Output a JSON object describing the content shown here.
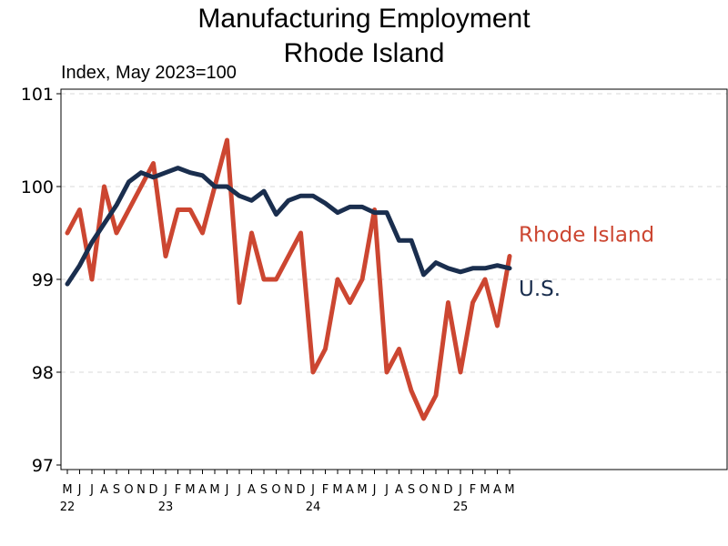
{
  "chart_data": {
    "type": "line",
    "title": "Manufacturing Employment",
    "subtitle": "Rhode Island",
    "ylabel": "Index, May 2023=100",
    "ylim": [
      97,
      101
    ],
    "yticks": [
      97,
      98,
      99,
      100,
      101
    ],
    "x": [
      "2022-05",
      "2022-06",
      "2022-07",
      "2022-08",
      "2022-09",
      "2022-10",
      "2022-11",
      "2022-12",
      "2023-01",
      "2023-02",
      "2023-03",
      "2023-04",
      "2023-05",
      "2023-06",
      "2023-07",
      "2023-08",
      "2023-09",
      "2023-10",
      "2023-11",
      "2023-12",
      "2024-01",
      "2024-02",
      "2024-03",
      "2024-04",
      "2024-05",
      "2024-06",
      "2024-07",
      "2024-08",
      "2024-09",
      "2024-10",
      "2024-11",
      "2024-12",
      "2025-01",
      "2025-02",
      "2025-03",
      "2025-04",
      "2025-05"
    ],
    "month_labels": [
      "M",
      "J",
      "J",
      "A",
      "S",
      "O",
      "N",
      "D",
      "J",
      "F",
      "M",
      "A",
      "M",
      "J",
      "J",
      "A",
      "S",
      "O",
      "N",
      "D",
      "J",
      "F",
      "M",
      "A",
      "M",
      "J",
      "J",
      "A",
      "S",
      "O",
      "N",
      "D",
      "J",
      "F",
      "M",
      "A",
      "M"
    ],
    "year_labels": [
      {
        "index": 0,
        "label": "22"
      },
      {
        "index": 8,
        "label": "23"
      },
      {
        "index": 20,
        "label": "24"
      },
      {
        "index": 32,
        "label": "25"
      }
    ],
    "series": [
      {
        "name": "Rhode Island",
        "color": "#cc4631",
        "values": [
          99.5,
          99.75,
          99.0,
          100.0,
          99.5,
          99.75,
          100.0,
          100.25,
          99.25,
          99.75,
          99.75,
          99.5,
          100.0,
          100.5,
          98.75,
          99.5,
          99.0,
          99.0,
          99.25,
          99.5,
          98.0,
          98.25,
          99.0,
          98.75,
          99.0,
          99.75,
          98.0,
          98.25,
          97.8,
          97.5,
          97.75,
          98.75,
          98.0,
          98.75,
          99.0,
          98.5,
          99.25
        ]
      },
      {
        "name": "U.S.",
        "color": "#1a2e4e",
        "values": [
          98.95,
          99.15,
          99.4,
          99.6,
          99.8,
          100.05,
          100.15,
          100.1,
          100.15,
          100.2,
          100.15,
          100.12,
          100.0,
          100.0,
          99.9,
          99.85,
          99.95,
          99.7,
          99.85,
          99.9,
          99.9,
          99.82,
          99.72,
          99.78,
          99.78,
          99.72,
          99.72,
          99.42,
          99.42,
          99.05,
          99.18,
          99.12,
          99.08,
          99.12,
          99.12,
          99.15,
          99.12
        ]
      }
    ],
    "grid": true,
    "legend": "inline-right"
  }
}
